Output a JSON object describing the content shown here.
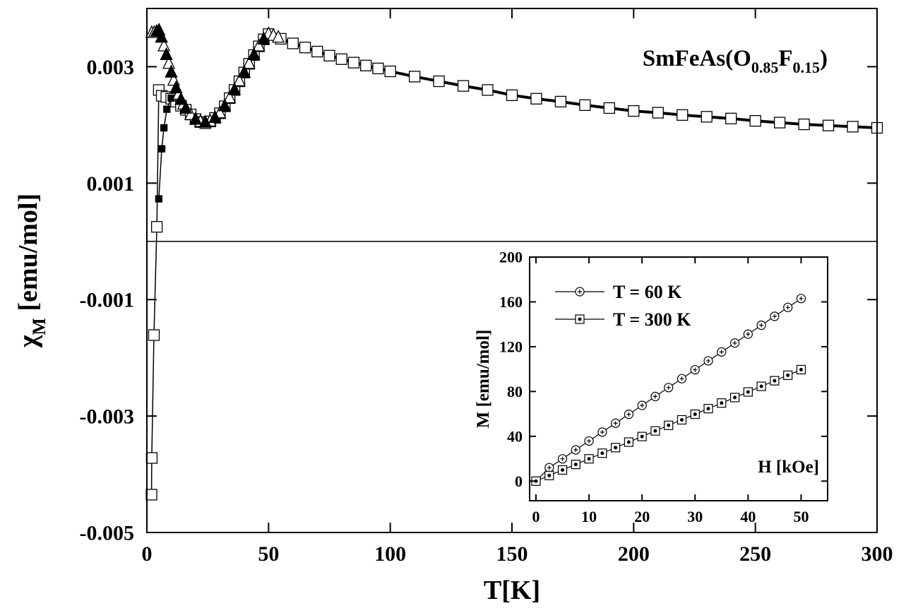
{
  "chart_data": [
    {
      "type": "line",
      "x_label": "T[K]",
      "y_label": [
        "χ",
        "M",
        " [emu/mol]"
      ],
      "annotation": [
        "SmFeAs(O",
        "0.85",
        "F",
        "0.15",
        ")"
      ],
      "xlim": [
        0,
        300
      ],
      "xticks": [
        0,
        50,
        100,
        150,
        200,
        250,
        300
      ],
      "ylim": [
        -0.005,
        0.004
      ],
      "yticks": [
        -0.005,
        -0.003,
        -0.001,
        0.001,
        0.003
      ],
      "zero_line": true,
      "series": [
        {
          "marker": "line-only",
          "color": "#000",
          "line_width": 4,
          "x": [
            55,
            60,
            70,
            80,
            90,
            100,
            110,
            120,
            130,
            140,
            150,
            160,
            170,
            180,
            190,
            200,
            210,
            220,
            230,
            240,
            250,
            260,
            270,
            280,
            290,
            300
          ],
          "values": [
            0.00348,
            0.0034,
            0.00326,
            0.00313,
            0.00302,
            0.00292,
            0.00283,
            0.00275,
            0.00267,
            0.0026,
            0.00251,
            0.00245,
            0.0024,
            0.00234,
            0.00229,
            0.00224,
            0.00221,
            0.00217,
            0.00214,
            0.00211,
            0.00207,
            0.00204,
            0.00201,
            0.00199,
            0.00197,
            0.00195
          ]
        },
        {
          "marker": "square-open",
          "color": "#000",
          "line_width": 1.5,
          "x": [
            1.9,
            2.0,
            2.9,
            4.1,
            4.9,
            6.1,
            8,
            10,
            12,
            14,
            16,
            18,
            20,
            22,
            24,
            26,
            28,
            30,
            32,
            34,
            36,
            38,
            40,
            42,
            44,
            46,
            48,
            50,
            55,
            60,
            65,
            70,
            75,
            80,
            85,
            90,
            95,
            100,
            110,
            120,
            130,
            140,
            150,
            160,
            170,
            180,
            190,
            200,
            210,
            220,
            230,
            240,
            250,
            260,
            270,
            280,
            290,
            300
          ],
          "values": [
            -0.00435,
            -0.00372,
            -0.00161,
            0.00025,
            0.0026,
            0.0025,
            0.00248,
            0.00245,
            0.0024,
            0.00233,
            0.00226,
            0.00218,
            0.0021,
            0.00205,
            0.00203,
            0.00206,
            0.00212,
            0.0022,
            0.00232,
            0.00246,
            0.0026,
            0.00275,
            0.0029,
            0.00305,
            0.0032,
            0.00335,
            0.00347,
            0.00356,
            0.00348,
            0.0034,
            0.00333,
            0.00326,
            0.00319,
            0.00313,
            0.00307,
            0.00302,
            0.00297,
            0.00292,
            0.00283,
            0.00275,
            0.00267,
            0.0026,
            0.00251,
            0.00245,
            0.0024,
            0.00234,
            0.00229,
            0.00224,
            0.00221,
            0.00217,
            0.00214,
            0.00211,
            0.00207,
            0.00204,
            0.00201,
            0.00199,
            0.00197,
            0.00195
          ]
        },
        {
          "marker": "square-filled",
          "color": "#000",
          "line_width": 1.5,
          "x": [
            4.9,
            6.1,
            7.0,
            8.2,
            10
          ],
          "values": [
            0.00073,
            0.00159,
            0.00195,
            0.00227,
            0.00246
          ]
        },
        {
          "marker": "triangle-open",
          "color": "#000",
          "line_width": 1.5,
          "x": [
            2,
            3,
            4,
            5,
            6,
            7,
            8,
            9,
            10,
            11,
            12,
            13,
            14,
            15,
            16,
            18,
            20,
            22,
            24,
            26,
            28,
            30,
            32,
            34,
            36,
            38,
            40,
            42,
            44,
            46,
            48,
            50,
            52,
            54
          ],
          "values": [
            0.00358,
            0.00358,
            0.0036,
            0.00362,
            0.0035,
            0.00335,
            0.0032,
            0.00305,
            0.0029,
            0.00276,
            0.00263,
            0.00252,
            0.00243,
            0.00235,
            0.00228,
            0.00217,
            0.00209,
            0.00205,
            0.00204,
            0.00206,
            0.00212,
            0.0022,
            0.00232,
            0.00246,
            0.0026,
            0.00275,
            0.0029,
            0.00305,
            0.0032,
            0.00335,
            0.00347,
            0.00356,
            0.00353,
            0.0035
          ]
        },
        {
          "marker": "triangle-filled",
          "color": "#000",
          "line_width": 0,
          "x": [
            4,
            5,
            6,
            8,
            10,
            12,
            14,
            16,
            20,
            24,
            28,
            32,
            36,
            40,
            44,
            48
          ],
          "values": [
            0.0036,
            0.00362,
            0.0035,
            0.0032,
            0.0029,
            0.00263,
            0.00243,
            0.00228,
            0.00209,
            0.00204,
            0.00212,
            0.00232,
            0.0026,
            0.0029,
            0.0032,
            0.00347
          ]
        }
      ]
    },
    {
      "type": "line",
      "x_label": "H [kOe]",
      "y_label": "M [emu/mol]",
      "xlim": [
        -1.2,
        55
      ],
      "xticks": [
        0,
        10,
        20,
        30,
        40,
        50
      ],
      "ylim": [
        -17.5,
        200
      ],
      "yticks": [
        0,
        40,
        80,
        120,
        160,
        200
      ],
      "legend": "upper left",
      "series": [
        {
          "name": "T = 60 K",
          "marker": "circle-dot",
          "color": "#000",
          "line_width": 1.2,
          "x": [
            0,
            2.5,
            5,
            7.5,
            10,
            12.5,
            15,
            17.5,
            20,
            22.5,
            25,
            27.5,
            30,
            32.5,
            35,
            37.5,
            40,
            42.5,
            45,
            47.5,
            50
          ],
          "values": [
            0,
            12,
            19.9,
            27.9,
            35.8,
            43.75,
            51.7,
            59.65,
            67.6,
            75.55,
            83.5,
            91.45,
            99.4,
            107.35,
            115.3,
            123.25,
            131.2,
            139.15,
            147.1,
            155.05,
            163
          ]
        },
        {
          "name": "T = 300 K",
          "marker": "square-dot",
          "color": "#000",
          "line_width": 1.2,
          "x": [
            0,
            2.5,
            5,
            7.5,
            10,
            12.5,
            15,
            17.5,
            20,
            22.5,
            25,
            27.5,
            30,
            32.5,
            35,
            37.5,
            40,
            42.5,
            45,
            47.5,
            50
          ],
          "values": [
            0,
            5,
            9.95,
            14.9,
            19.9,
            24.9,
            29.9,
            34.8,
            39.8,
            44.8,
            49.8,
            54.7,
            59.7,
            64.7,
            69.7,
            74.6,
            79.6,
            84.6,
            89.6,
            94.5,
            99.5
          ]
        }
      ]
    }
  ]
}
